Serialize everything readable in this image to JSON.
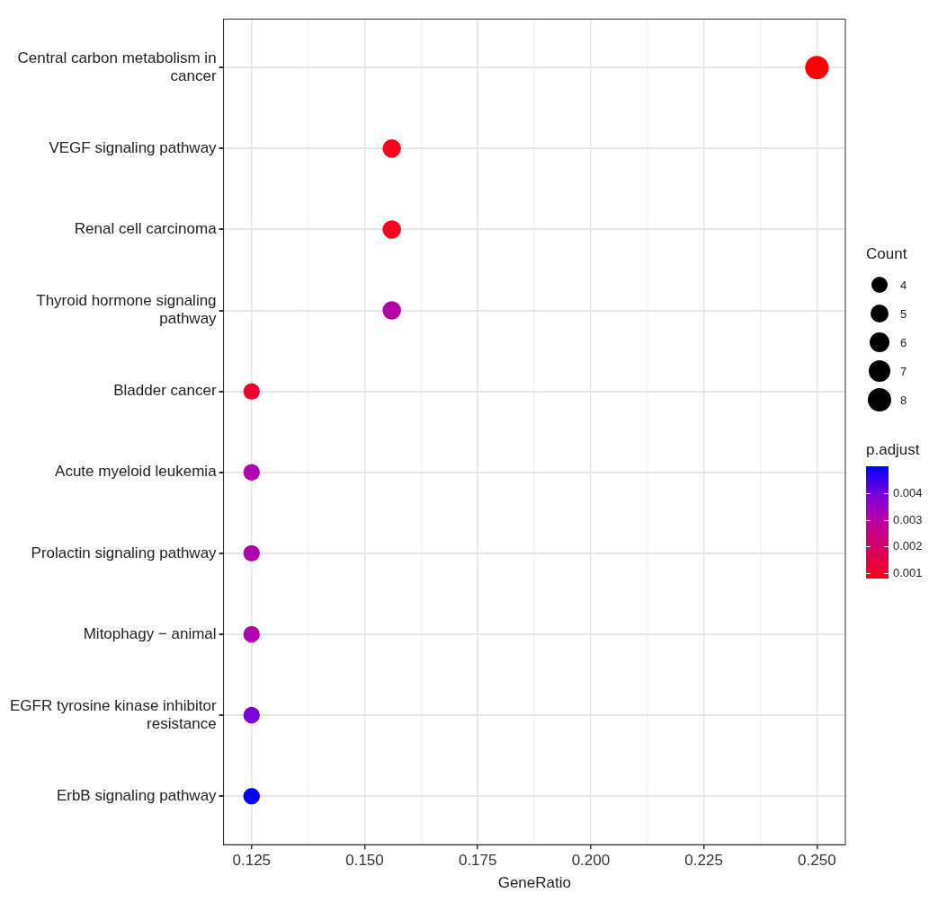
{
  "chart_data": {
    "type": "bubble",
    "xlabel": "GeneRatio",
    "legend_title": "Count",
    "clabel": "p.adjust",
    "categories": [
      "Central carbon metabolism in cancer",
      "VEGF signaling pathway",
      "Renal cell carcinoma",
      "Thyroid hormone signaling pathway",
      "Bladder cancer",
      "Acute myeloid leukemia",
      "Prolactin signaling pathway",
      "Mitophagy − animal",
      "EGFR tyrosine kinase inhibitor resistance",
      "ErbB signaling pathway"
    ],
    "values": [
      0.25,
      0.156,
      0.156,
      0.156,
      0.125,
      0.125,
      0.125,
      0.125,
      0.125,
      0.125
    ],
    "sizes": [
      8,
      5,
      5,
      5,
      4,
      4,
      4,
      4,
      4,
      4
    ],
    "size_legend": [
      4,
      5,
      6,
      7,
      8
    ],
    "cvalues": [
      0.0008,
      0.0009,
      0.0009,
      0.0031,
      0.0011,
      0.0031,
      0.0031,
      0.0031,
      0.0039,
      0.005
    ],
    "colors": [
      "#ff0000",
      "#fa0020",
      "#fa0020",
      "#b400a8",
      "#f00030",
      "#b000b0",
      "#b000b0",
      "#b000b0",
      "#8000d8",
      "#0000ff"
    ],
    "clim": [
      0.0008,
      0.005
    ],
    "cticks": [
      0.001,
      0.002,
      0.003,
      0.004
    ],
    "orientation": "horizontal",
    "xlim": [
      0.1188,
      0.2563
    ],
    "xticks": [
      0.125,
      {
        "value": 0.1375,
        "label": null
      },
      {
        "value": 0.15,
        "label": "0.150"
      },
      {
        "value": 0.1625,
        "label": null
      },
      0.175,
      {
        "value": 0.1875,
        "label": null
      },
      {
        "value": 0.2,
        "label": "0.200"
      },
      {
        "value": 0.2125,
        "label": null
      },
      0.225,
      {
        "value": 0.2375,
        "label": null
      },
      {
        "value": 0.25,
        "label": "0.250"
      }
    ],
    "grid": true
  }
}
